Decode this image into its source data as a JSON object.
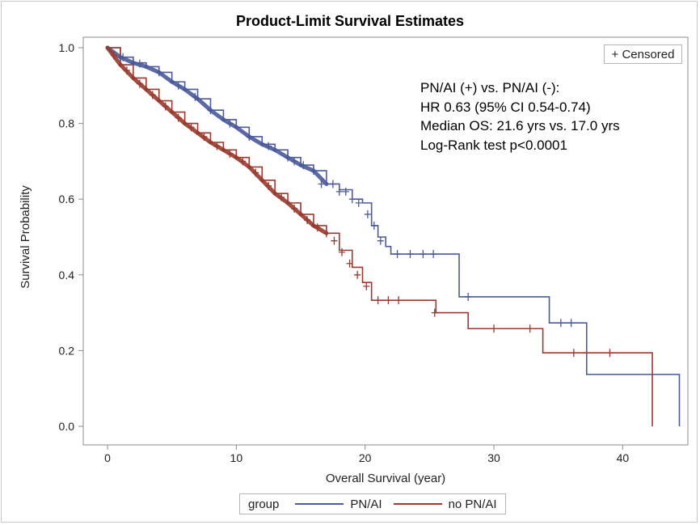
{
  "chart_data": {
    "type": "line",
    "title": "Product-Limit Survival Estimates",
    "xlabel": "Overall Survival (year)",
    "ylabel": "Survival Probability",
    "xlim": [
      0,
      44.5
    ],
    "ylim": [
      0,
      1.0
    ],
    "xticks": [
      "0",
      "10",
      "20",
      "30",
      "40"
    ],
    "yticks": [
      "0.0",
      "0.2",
      "0.4",
      "0.6",
      "0.8",
      "1.0"
    ],
    "grid": false,
    "legend": {
      "title": "group",
      "placement": "bottom",
      "entries": [
        "PN/AI",
        "no PN/AI"
      ]
    },
    "censor_legend": "+ Censored",
    "annotation": [
      "PN/AI (+) vs. PN/AI (-):",
      "HR 0.63 (95% CI 0.54-0.74)",
      "Median OS: 21.6 yrs vs. 17.0 yrs",
      "Log-Rank test p<0.0001"
    ],
    "series": [
      {
        "name": "PN/AI",
        "color": "#4a5a9a",
        "x": [
          0,
          1,
          2,
          3,
          4,
          5,
          6,
          7,
          8,
          9,
          10,
          11,
          12,
          13,
          14,
          15,
          16,
          17,
          18,
          19,
          19.8,
          20.5,
          21,
          21.6,
          22,
          25,
          26.9,
          27.3,
          34.3,
          37.2,
          44.4
        ],
        "y": [
          1.0,
          0.975,
          0.96,
          0.95,
          0.935,
          0.91,
          0.89,
          0.865,
          0.835,
          0.81,
          0.79,
          0.765,
          0.745,
          0.73,
          0.71,
          0.69,
          0.675,
          0.64,
          0.625,
          0.6,
          0.59,
          0.53,
          0.5,
          0.475,
          0.455,
          0.455,
          0.455,
          0.342,
          0.273,
          0.137,
          0.0
        ],
        "censored": [
          [
            1.2,
            0.975
          ],
          [
            2.5,
            0.958
          ],
          [
            4,
            0.935
          ],
          [
            5.5,
            0.9
          ],
          [
            6.8,
            0.87
          ],
          [
            8,
            0.835
          ],
          [
            9.5,
            0.8
          ],
          [
            11,
            0.765
          ],
          [
            12.5,
            0.74
          ],
          [
            14,
            0.71
          ],
          [
            14.5,
            0.7
          ],
          [
            15.2,
            0.69
          ],
          [
            16,
            0.675
          ],
          [
            16.6,
            0.64
          ],
          [
            17.5,
            0.64
          ],
          [
            18,
            0.62
          ],
          [
            18.5,
            0.62
          ],
          [
            19,
            0.6
          ],
          [
            19.5,
            0.59
          ],
          [
            20.2,
            0.56
          ],
          [
            20.7,
            0.53
          ],
          [
            21.2,
            0.49
          ],
          [
            22.5,
            0.455
          ],
          [
            23.5,
            0.455
          ],
          [
            24.5,
            0.455
          ],
          [
            25.3,
            0.455
          ],
          [
            28,
            0.342
          ],
          [
            35.2,
            0.273
          ],
          [
            36,
            0.273
          ]
        ]
      },
      {
        "name": "no PN/AI",
        "color": "#9a3a2e",
        "x": [
          0,
          1,
          2,
          3,
          4,
          5,
          6,
          7,
          8,
          9,
          10,
          11,
          12,
          13,
          14,
          15,
          16,
          17,
          18,
          19,
          19.8,
          20.5,
          25.2,
          25.5,
          28,
          33.8,
          42.3
        ],
        "y": [
          1.0,
          0.955,
          0.92,
          0.89,
          0.86,
          0.83,
          0.8,
          0.775,
          0.75,
          0.73,
          0.71,
          0.685,
          0.65,
          0.615,
          0.59,
          0.56,
          0.53,
          0.51,
          0.465,
          0.42,
          0.38,
          0.333,
          0.333,
          0.3,
          0.258,
          0.194,
          0.0
        ],
        "censored": [
          [
            0.5,
            0.98
          ],
          [
            1.5,
            0.94
          ],
          [
            2.5,
            0.905
          ],
          [
            3.5,
            0.875
          ],
          [
            4.5,
            0.845
          ],
          [
            5.5,
            0.815
          ],
          [
            6.5,
            0.79
          ],
          [
            7.5,
            0.765
          ],
          [
            8.5,
            0.74
          ],
          [
            9.5,
            0.72
          ],
          [
            10.5,
            0.7
          ],
          [
            11.5,
            0.67
          ],
          [
            12.5,
            0.635
          ],
          [
            13.5,
            0.605
          ],
          [
            14.5,
            0.575
          ],
          [
            15.5,
            0.545
          ],
          [
            16.3,
            0.525
          ],
          [
            17,
            0.51
          ],
          [
            17.6,
            0.49
          ],
          [
            18.2,
            0.46
          ],
          [
            18.8,
            0.43
          ],
          [
            19.4,
            0.4
          ],
          [
            20.1,
            0.37
          ],
          [
            21,
            0.333
          ],
          [
            21.8,
            0.333
          ],
          [
            22.6,
            0.333
          ],
          [
            25.4,
            0.3
          ],
          [
            30,
            0.258
          ],
          [
            32.8,
            0.258
          ],
          [
            36.2,
            0.194
          ],
          [
            39,
            0.194
          ]
        ]
      }
    ]
  }
}
